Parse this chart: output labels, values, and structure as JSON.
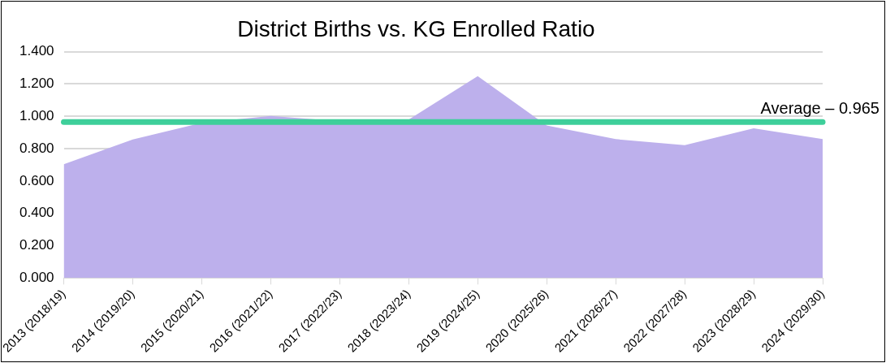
{
  "chart_data": {
    "type": "area",
    "title": "District Births vs. KG Enrolled Ratio",
    "categories": [
      "2013 (2018/19)",
      "2014 (2019/20)",
      "2015 (2020/21)",
      "2016 (2021/22)",
      "2017 (2022/23)",
      "2018 (2023/24)",
      "2019 (2024/25)",
      "2020 (2025/26)",
      "2021 (2026/27)",
      "2022 (2027/28)",
      "2023 (2028/29)",
      "2024 (2029/30)"
    ],
    "series": [
      {
        "color": "#bdb0ec",
        "values": [
          0.703,
          0.857,
          0.96,
          1.003,
          0.97,
          0.98,
          1.248,
          0.943,
          0.859,
          0.821,
          0.926,
          0.859
        ]
      }
    ],
    "ylim": [
      0,
      1.4
    ],
    "yticks": [
      {
        "value": 0,
        "label": "0.000"
      },
      {
        "value": 0.2,
        "label": "0.200"
      },
      {
        "value": 0.4,
        "label": "0.400"
      },
      {
        "value": 0.6,
        "label": "0.600"
      },
      {
        "value": 0.8,
        "label": "0.800"
      },
      {
        "value": 1,
        "label": "1.000"
      },
      {
        "value": 1.2,
        "label": "1.200"
      },
      {
        "value": 1.4,
        "label": "1.400"
      }
    ],
    "grid": "y",
    "legend": false,
    "ref_lines": [
      {
        "axis": "y",
        "value": 0.965,
        "label": "Average – 0.965",
        "color": "#3ecf9a"
      }
    ]
  }
}
